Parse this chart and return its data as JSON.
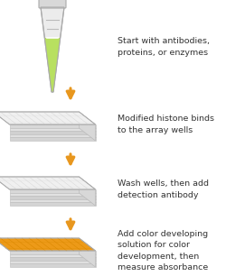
{
  "bg_color": "#ffffff",
  "arrow_color": "#e8971e",
  "text_color": "#333333",
  "steps": [
    {
      "text": "Start with antibodies,\nproteins, or enzymes",
      "type": "tube"
    },
    {
      "text": "Modified histone binds\nto the array wells",
      "type": "plate_white"
    },
    {
      "text": "Wash wells, then add\ndetection antibody",
      "type": "plate_white"
    },
    {
      "text": "Add color developing\nsolution for color\ndevelopment, then\nmeasure absorbance",
      "type": "plate_orange"
    }
  ],
  "tube_cap_color": "#d8d8d8",
  "tube_body_color": "#ececec",
  "tube_liquid_color": "#b8e060",
  "plate_top_white": "#f8f8f8",
  "plate_top_orange": "#f5a020",
  "plate_side_light": "#e0e0e0",
  "plate_side_dark": "#c8c8c8",
  "plate_grid_white": "#d8d8d8",
  "plate_grid_orange": "#d88800",
  "font_size": 6.8
}
